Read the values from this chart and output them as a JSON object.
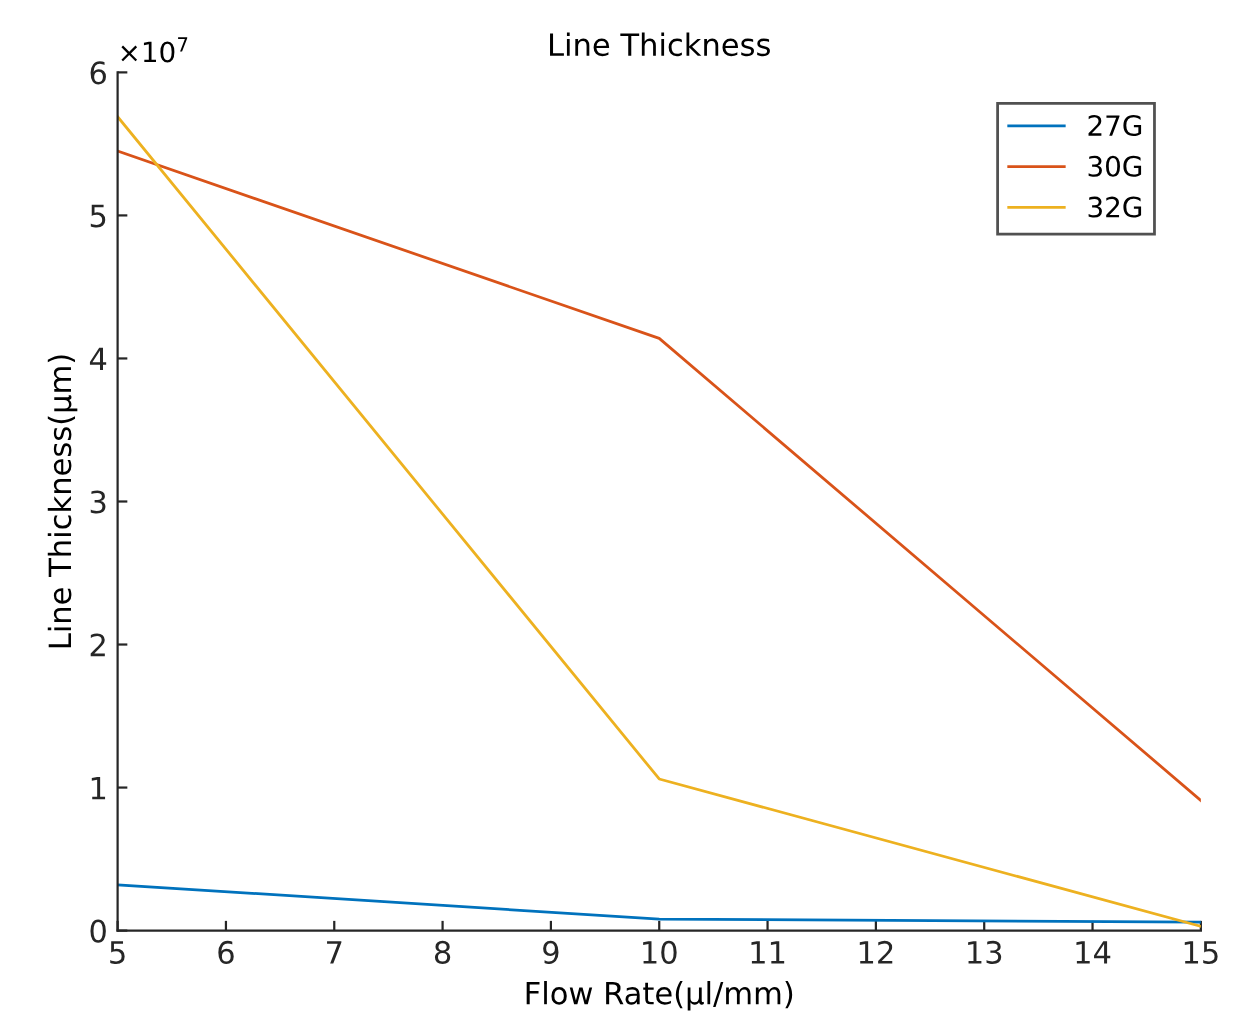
{
  "chart_data": {
    "type": "line",
    "title": "Line Thickness",
    "xlabel": "Flow Rate(μl/mm)",
    "ylabel": "Line Thickness(μm)",
    "x": [
      5,
      10,
      15
    ],
    "series": [
      {
        "name": "27G",
        "color": "#0072bd",
        "values": [
          0.32,
          0.08,
          0.06
        ]
      },
      {
        "name": "30G",
        "color": "#d95319",
        "values": [
          5.45,
          4.14,
          0.91
        ]
      },
      {
        "name": "32G",
        "color": "#edb120",
        "values": [
          5.69,
          1.06,
          0.03
        ]
      }
    ],
    "xlim": [
      5,
      15
    ],
    "xticks": [
      5,
      6,
      7,
      8,
      9,
      10,
      11,
      12,
      13,
      14,
      15
    ],
    "ylim": [
      0,
      6
    ],
    "yticks": [
      0,
      1,
      2,
      3,
      4,
      5,
      6
    ],
    "annotations": [
      "×10$^{7}$"
    ],
    "legend": "top right",
    "grid": false,
    "marker": "none",
    "line_style": "solid"
  }
}
